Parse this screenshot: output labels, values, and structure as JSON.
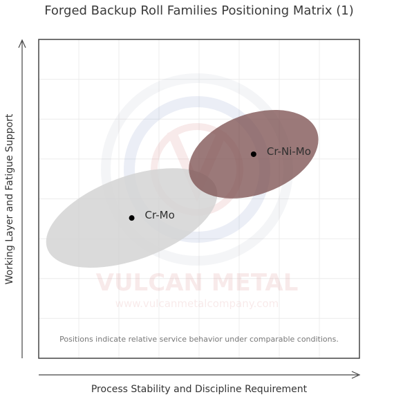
{
  "chart_data": {
    "type": "scatter",
    "title": "Forged Backup Roll Families Positioning Matrix (1)",
    "xlabel": "Process Stability and Discipline Requirement",
    "ylabel": "Working Layer and Fatigue Support",
    "xlim": [
      0,
      10
    ],
    "ylim": [
      0,
      10
    ],
    "grid": true,
    "note": "Positions indicate relative service behavior under comparable conditions.",
    "series": [
      {
        "name": "Cr-Mo",
        "x": 2.9,
        "y": 4.4,
        "spread": {
          "x_radius": 2.8,
          "y_radius": 2.9,
          "tilt_deg": -20
        },
        "color": "#d3d3d3"
      },
      {
        "name": "Cr-Ni-Mo",
        "x": 6.7,
        "y": 6.4,
        "spread": {
          "x_radius": 2.1,
          "y_radius": 2.8,
          "tilt_deg": -20
        },
        "color": "#7a4c4c"
      }
    ]
  },
  "watermark": {
    "brand": "VULCAN METAL",
    "url": "www.vulcanmetalcompany.com"
  }
}
